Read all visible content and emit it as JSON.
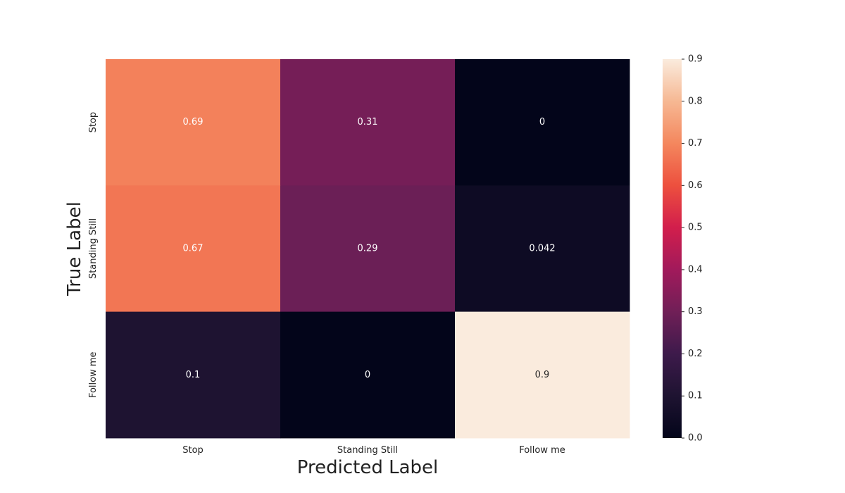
{
  "chart_data": {
    "type": "heatmap",
    "title": "",
    "xlabel": "Predicted Label",
    "ylabel": "True Label",
    "x_categories": [
      "Stop",
      "Standing Still",
      "Follow me"
    ],
    "y_categories": [
      "Stop",
      "Standing Still",
      "Follow me"
    ],
    "values": [
      [
        0.69,
        0.31,
        0
      ],
      [
        0.67,
        0.29,
        0.042
      ],
      [
        0.1,
        0,
        0.9
      ]
    ],
    "annotations": [
      [
        "0.69",
        "0.31",
        "0"
      ],
      [
        "0.67",
        "0.29",
        "0.042"
      ],
      [
        "0.1",
        "0",
        "0.9"
      ]
    ],
    "colorbar": {
      "range": [
        0,
        0.9
      ],
      "ticks": [
        "0.0",
        "0.1",
        "0.2",
        "0.3",
        "0.4",
        "0.5",
        "0.6",
        "0.7",
        "0.8",
        "0.9"
      ],
      "colormap": "rocket"
    },
    "grid": false
  }
}
